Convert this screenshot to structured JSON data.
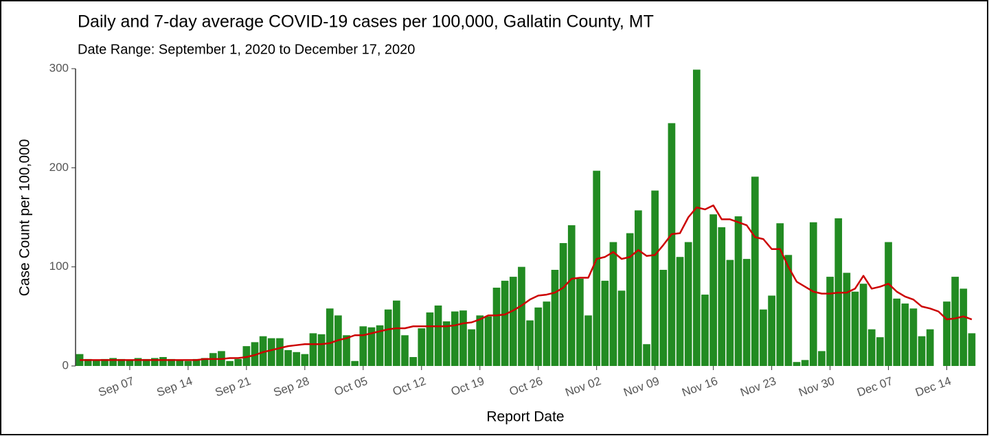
{
  "chart_data": {
    "type": "bar",
    "title": "Daily and 7-day average COVID-19 cases per 100,000, Gallatin County, MT",
    "subtitle": "Date Range: September 1, 2020 to December 17, 2020",
    "x_label": "Report Date",
    "y_label": "Case Count per 100,000",
    "categories": [
      null,
      null,
      null,
      null,
      null,
      null,
      "Sep 07",
      null,
      null,
      null,
      null,
      null,
      null,
      "Sep 14",
      null,
      null,
      null,
      null,
      null,
      null,
      "Sep 21",
      null,
      null,
      null,
      null,
      null,
      null,
      "Sep 28",
      null,
      null,
      null,
      null,
      null,
      null,
      "Oct 05",
      null,
      null,
      null,
      null,
      null,
      null,
      "Oct 12",
      null,
      null,
      null,
      null,
      null,
      null,
      "Oct 19",
      null,
      null,
      null,
      null,
      null,
      null,
      "Oct 26",
      null,
      null,
      null,
      null,
      null,
      null,
      "Nov 02",
      null,
      null,
      null,
      null,
      null,
      null,
      "Nov 09",
      null,
      null,
      null,
      null,
      null,
      null,
      "Nov 16",
      null,
      null,
      null,
      null,
      null,
      null,
      "Nov 23",
      null,
      null,
      null,
      null,
      null,
      null,
      "Nov 30",
      null,
      null,
      null,
      null,
      null,
      null,
      "Dec 07",
      null,
      null,
      null,
      null,
      null,
      null,
      "Dec 14",
      null,
      null,
      null
    ],
    "series": [
      {
        "type": "bar",
        "color": "#228b22",
        "values": [
          12,
          7,
          6,
          7,
          8,
          7,
          6,
          8,
          7,
          8,
          9,
          7,
          6,
          5,
          7,
          8,
          13,
          15,
          5,
          7,
          20,
          24,
          30,
          28,
          28,
          16,
          14,
          12,
          33,
          32,
          58,
          51,
          31,
          5,
          40,
          39,
          41,
          57,
          66,
          31,
          9,
          38,
          54,
          61,
          45,
          55,
          56,
          37,
          51,
          50,
          79,
          86,
          90,
          100,
          46,
          59,
          65,
          97,
          124,
          142,
          88,
          51,
          197,
          86,
          125,
          76,
          134,
          157,
          22,
          177,
          97,
          245,
          110,
          125,
          299,
          72,
          153,
          140,
          107,
          151,
          108,
          191,
          57,
          71,
          144,
          112,
          4,
          6,
          145,
          15,
          90,
          149,
          94,
          75,
          83,
          37,
          29,
          125,
          68,
          63,
          58,
          30,
          37,
          0,
          65,
          90,
          78,
          33
        ]
      },
      {
        "type": "line",
        "color": "#cc0000",
        "values": [
          6,
          6,
          6,
          6,
          6,
          6,
          6,
          6,
          6,
          6,
          6,
          6,
          6,
          6,
          6,
          7,
          7,
          7,
          8,
          8,
          9,
          11,
          14,
          16,
          18,
          20,
          21,
          22,
          22,
          22,
          23,
          26,
          28,
          31,
          31,
          33,
          35,
          37,
          38,
          38,
          40,
          40,
          40,
          40,
          40,
          41,
          43,
          44,
          47,
          51,
          51,
          52,
          56,
          61,
          67,
          71,
          72,
          74,
          79,
          88,
          89,
          89,
          108,
          110,
          115,
          108,
          110,
          117,
          111,
          112,
          122,
          133,
          134,
          150,
          160,
          158,
          162,
          148,
          148,
          145,
          142,
          130,
          128,
          118,
          118,
          100,
          85,
          80,
          75,
          73,
          73,
          74,
          74,
          78,
          91,
          78,
          80,
          83,
          75,
          70,
          67,
          60,
          58,
          55,
          47,
          48,
          50,
          47
        ]
      }
    ],
    "ylim": [
      0,
      300
    ],
    "yticks": [
      0,
      100,
      200,
      300
    ],
    "grid": false
  }
}
